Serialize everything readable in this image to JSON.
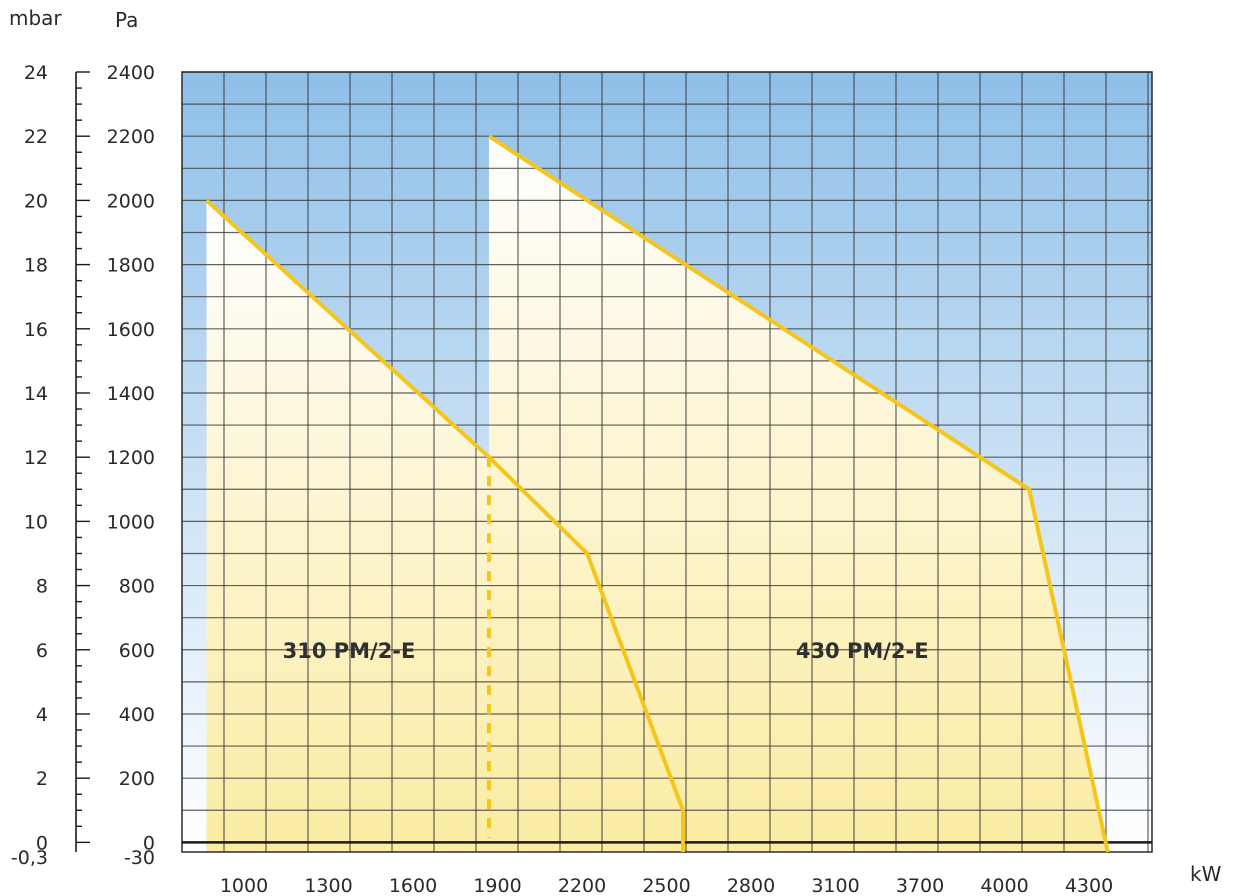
{
  "chart_data": {
    "type": "area",
    "left_axis": {
      "unit": "mbar",
      "ticks": [
        24,
        22,
        20,
        18,
        16,
        14,
        12,
        10,
        8,
        6,
        4,
        2,
        0
      ],
      "bottom_tick": "-0,3"
    },
    "right_axis": {
      "unit": "Pa",
      "ticks": [
        2400,
        2200,
        2000,
        1800,
        1600,
        1400,
        1200,
        1000,
        800,
        600,
        400,
        200,
        0
      ],
      "bottom_tick": "-30"
    },
    "x_axis": {
      "unit": "kW",
      "ticks": [
        1000,
        1300,
        1600,
        1900,
        2200,
        2500,
        2800,
        3100,
        3700,
        4000,
        4300
      ],
      "range": [
        850,
        4800
      ]
    },
    "y_range_pa": [
      -30,
      2400
    ],
    "grid": true,
    "colors": {
      "curve": "#f4c61c",
      "sky_top": "#8ebfe8",
      "field": "#fbeda7",
      "grid": "#3a3a3a"
    },
    "series": [
      {
        "name": "310 PM/2-E",
        "points": [
          [
            950,
            2000
          ],
          [
            2100,
            1200
          ],
          [
            2500,
            900
          ],
          [
            2890,
            100
          ],
          [
            2890,
            -30
          ]
        ]
      },
      {
        "name": "430 PM/2-E",
        "points": [
          [
            2100,
            2200
          ],
          [
            4300,
            1100
          ],
          [
            4620,
            -30
          ]
        ]
      }
    ],
    "annotations": [
      {
        "text": "310 PM/2-E",
        "x": 1530,
        "y": 600
      },
      {
        "text": "430 PM/2-E",
        "x": 3620,
        "y": 600
      }
    ],
    "divider_x": 2100
  }
}
